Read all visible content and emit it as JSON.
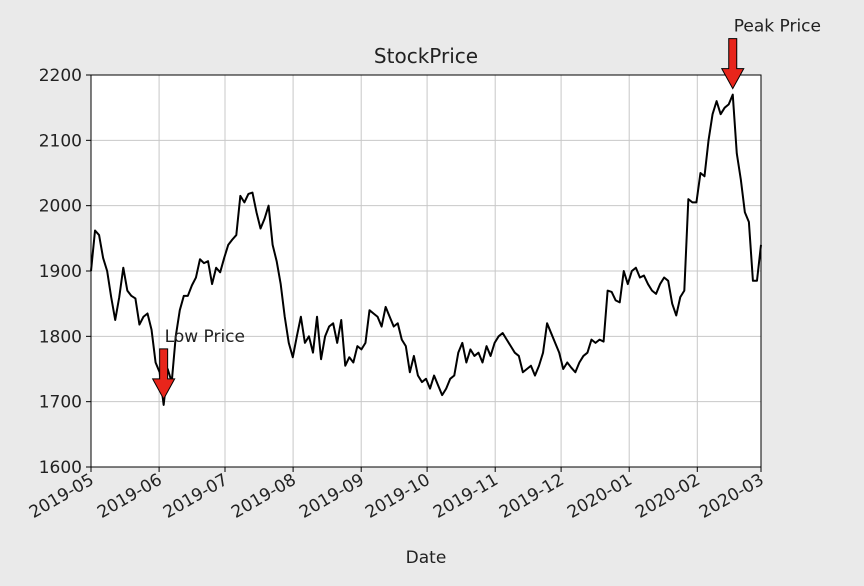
{
  "chart_data": {
    "type": "line",
    "title": "StockPrice",
    "x_label": "Date",
    "series": [
      {
        "color": "#000000",
        "values": [
          1900,
          1962,
          1955,
          1920,
          1900,
          1860,
          1825,
          1860,
          1905,
          1870,
          1862,
          1858,
          1818,
          1830,
          1835,
          1810,
          1760,
          1745,
          1695,
          1750,
          1730,
          1800,
          1840,
          1862,
          1862,
          1878,
          1890,
          1918,
          1912,
          1915,
          1880,
          1905,
          1898,
          1920,
          1940,
          1948,
          1955,
          2015,
          2005,
          2018,
          2020,
          1990,
          1965,
          1980,
          2000,
          1940,
          1915,
          1880,
          1830,
          1790,
          1768,
          1800,
          1830,
          1790,
          1800,
          1775,
          1830,
          1765,
          1800,
          1815,
          1820,
          1790,
          1825,
          1755,
          1768,
          1760,
          1785,
          1780,
          1790,
          1840,
          1835,
          1830,
          1815,
          1845,
          1830,
          1815,
          1820,
          1795,
          1785,
          1745,
          1770,
          1740,
          1730,
          1735,
          1720,
          1740,
          1725,
          1710,
          1720,
          1735,
          1740,
          1775,
          1790,
          1760,
          1780,
          1770,
          1775,
          1760,
          1785,
          1770,
          1790,
          1800,
          1805,
          1795,
          1785,
          1775,
          1770,
          1745,
          1750,
          1755,
          1740,
          1755,
          1775,
          1820,
          1805,
          1790,
          1775,
          1750,
          1760,
          1752,
          1745,
          1760,
          1770,
          1775,
          1795,
          1790,
          1795,
          1792,
          1870,
          1868,
          1855,
          1852,
          1900,
          1880,
          1900,
          1905,
          1890,
          1893,
          1880,
          1870,
          1865,
          1880,
          1890,
          1885,
          1850,
          1832,
          1860,
          1870,
          2010,
          2005,
          2005,
          2050,
          2045,
          2100,
          2140,
          2160,
          2140,
          2150,
          2155,
          2170,
          2080,
          2040,
          1990,
          1975,
          1885,
          1885,
          1940
        ]
      }
    ],
    "xlim": [
      "2019-05",
      "2020-03"
    ],
    "xticks": [
      "2019-05",
      "2019-06",
      "2019-07",
      "2019-08",
      "2019-09",
      "2019-10",
      "2019-11",
      "2019-12",
      "2020-01",
      "2020-02",
      "2020-03"
    ],
    "ylim": [
      1600,
      2200
    ],
    "yticks": [
      1600,
      1700,
      1800,
      1900,
      2000,
      2100,
      2200
    ],
    "grid": true,
    "annotations": [
      {
        "text": "Low Price",
        "value": 1695,
        "color": "#e8251b"
      },
      {
        "text": "Peak Price",
        "value": 2170,
        "color": "#e8251b"
      }
    ]
  }
}
